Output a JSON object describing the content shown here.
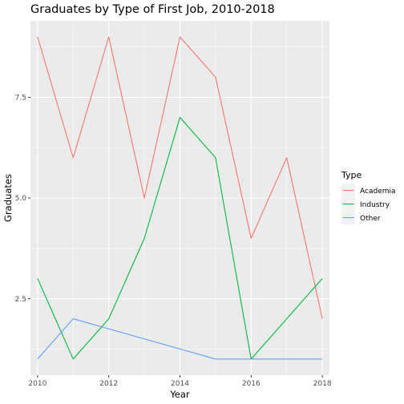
{
  "chart_data": {
    "type": "line",
    "title": "Graduates by Type of First Job, 2010-2018",
    "xlabel": "Year",
    "ylabel": "Graduates",
    "x": [
      2010,
      2011,
      2012,
      2013,
      2014,
      2015,
      2016,
      2017,
      2018
    ],
    "xlim": [
      2009.8,
      2018.2
    ],
    "ylim": [
      0.6,
      9.4
    ],
    "xticks": [
      2010,
      2012,
      2014,
      2016,
      2018
    ],
    "xtick_labels": [
      "2010",
      "2012",
      "2014",
      "2016",
      "2018"
    ],
    "yticks": [
      2.5,
      5.0,
      7.5
    ],
    "ytick_labels": [
      "2.5",
      "5.0",
      "7.5"
    ],
    "grid": true,
    "legend": {
      "title": "Type",
      "position": "right"
    },
    "series": [
      {
        "name": "Academia",
        "color": "#F8766D",
        "points": [
          [
            2010,
            9
          ],
          [
            2011,
            6
          ],
          [
            2012,
            9
          ],
          [
            2013,
            5
          ],
          [
            2014,
            9
          ],
          [
            2015,
            8
          ],
          [
            2016,
            4
          ],
          [
            2017,
            6
          ],
          [
            2018,
            2
          ]
        ]
      },
      {
        "name": "Industry",
        "color": "#00BA38",
        "points": [
          [
            2010,
            3
          ],
          [
            2011,
            1
          ],
          [
            2012,
            2
          ],
          [
            2013,
            4
          ],
          [
            2014,
            7
          ],
          [
            2015,
            6
          ],
          [
            2016,
            1
          ],
          [
            2018,
            3
          ]
        ]
      },
      {
        "name": "Other",
        "color": "#619CFF",
        "points": [
          [
            2010,
            1
          ],
          [
            2011,
            2
          ],
          [
            2015,
            1
          ],
          [
            2016,
            1
          ],
          [
            2018,
            1
          ]
        ]
      }
    ]
  }
}
